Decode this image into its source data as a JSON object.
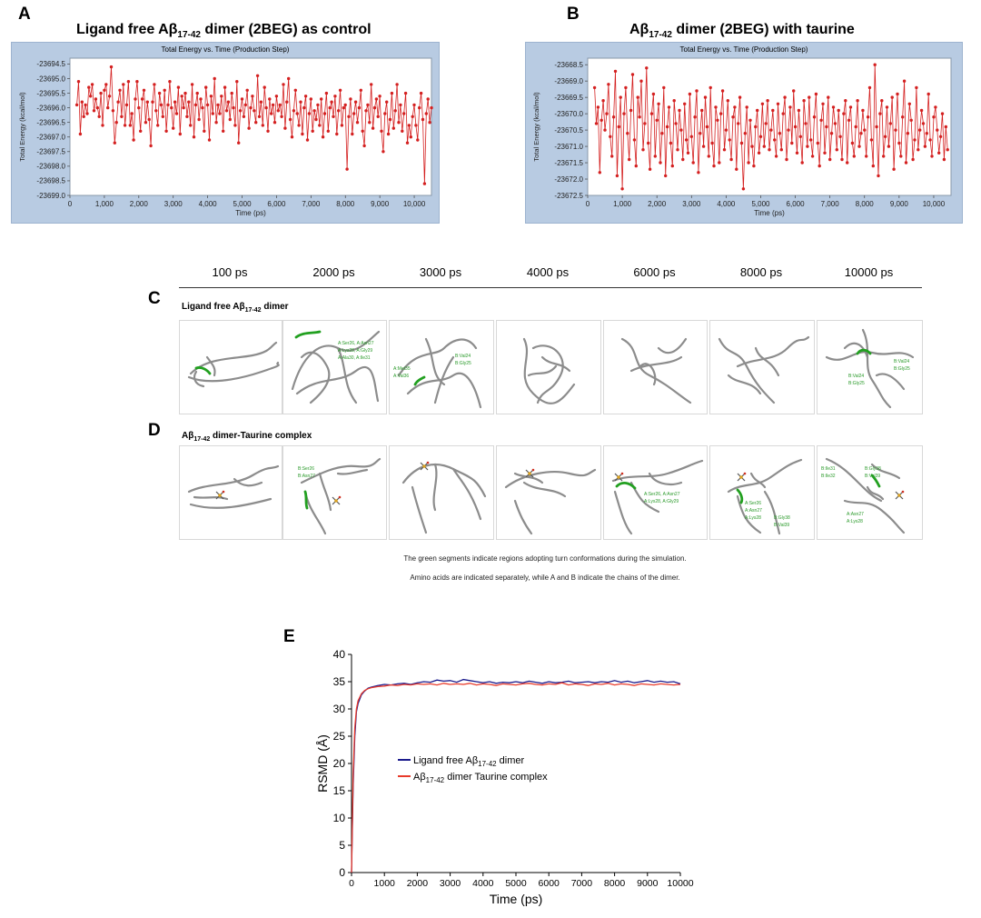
{
  "panels": {
    "a_letter": "A",
    "b_letter": "B",
    "c_letter": "C",
    "d_letter": "D",
    "e_letter": "E"
  },
  "titles": {
    "a_pre": "Ligand free Aβ",
    "a_sub": "17-42",
    "a_post": " dimer (2BEG) as control",
    "b_pre": "Aβ",
    "b_sub": "17-42",
    "b_post": " dimer (2BEG) with taurine"
  },
  "chart_data": [
    {
      "id": "A",
      "type": "line",
      "title": "Total Energy vs. Time (Production Step)",
      "xlabel": "Time (ps)",
      "ylabel": "Total Energy (kcal/mol)",
      "xlim": [
        0,
        10500
      ],
      "ylim": [
        -23699.0,
        -23694.3
      ],
      "xticks": [
        0,
        1000,
        2000,
        3000,
        4000,
        5000,
        6000,
        7000,
        8000,
        9000,
        10000
      ],
      "xtick_labels": [
        "0",
        "1,000",
        "2,000",
        "3,000",
        "4,000",
        "5,000",
        "6,000",
        "7,000",
        "8,000",
        "9,000",
        "10,000"
      ],
      "yticks": [
        -23694.5,
        -23695.0,
        -23695.5,
        -23696.0,
        -23696.5,
        -23697.0,
        -23697.5,
        -23698.0,
        -23698.5,
        -23699.0
      ],
      "ytick_labels": [
        "-23694.5",
        "-23695.0",
        "-23695.5",
        "-23696.0",
        "-23696.5",
        "-23697.0",
        "-23697.5",
        "-23698.0",
        "-23698.5",
        "-23699.0"
      ],
      "color": "#d42020",
      "x_start": 200,
      "x_step": 50,
      "values": [
        -23695.9,
        -23695.1,
        -23696.9,
        -23695.8,
        -23696.3,
        -23695.9,
        -23696.2,
        -23695.3,
        -23695.6,
        -23695.2,
        -23696.1,
        -23695.7,
        -23696.0,
        -23696.3,
        -23695.5,
        -23696.6,
        -23695.4,
        -23695.2,
        -23696.0,
        -23695.6,
        -23694.6,
        -23696.1,
        -23697.2,
        -23696.5,
        -23695.8,
        -23695.4,
        -23696.3,
        -23695.2,
        -23696.6,
        -23695.9,
        -23695.1,
        -23696.6,
        -23696.2,
        -23697.1,
        -23695.7,
        -23695.1,
        -23696.0,
        -23696.8,
        -23695.7,
        -23695.4,
        -23696.5,
        -23695.8,
        -23696.4,
        -23697.3,
        -23695.8,
        -23695.2,
        -23696.1,
        -23696.6,
        -23695.5,
        -23695.9,
        -23696.3,
        -23695.4,
        -23696.8,
        -23695.9,
        -23695.1,
        -23696.0,
        -23696.7,
        -23695.8,
        -23696.2,
        -23695.3,
        -23696.9,
        -23695.6,
        -23696.0,
        -23695.5,
        -23696.3,
        -23695.8,
        -23696.6,
        -23695.2,
        -23697.0,
        -23695.9,
        -23695.5,
        -23696.4,
        -23695.7,
        -23696.0,
        -23696.8,
        -23695.3,
        -23695.9,
        -23697.1,
        -23695.6,
        -23696.2,
        -23695.0,
        -23696.5,
        -23695.9,
        -23696.2,
        -23695.6,
        -23696.8,
        -23695.3,
        -23696.1,
        -23695.8,
        -23696.4,
        -23695.5,
        -23696.0,
        -23696.6,
        -23695.1,
        -23697.2,
        -23696.1,
        -23695.7,
        -23696.3,
        -23695.9,
        -23695.4,
        -23696.7,
        -23696.0,
        -23695.6,
        -23696.1,
        -23696.5,
        -23694.9,
        -23696.3,
        -23695.8,
        -23696.6,
        -23695.3,
        -23696.0,
        -23696.8,
        -23695.7,
        -23696.2,
        -23695.9,
        -23696.5,
        -23695.6,
        -23696.1,
        -23695.9,
        -23696.3,
        -23695.2,
        -23696.7,
        -23695.8,
        -23695.0,
        -23696.4,
        -23697.0,
        -23696.1,
        -23695.4,
        -23696.2,
        -23696.6,
        -23695.8,
        -23696.9,
        -23696.0,
        -23695.6,
        -23697.1,
        -23696.2,
        -23695.7,
        -23696.8,
        -23696.1,
        -23696.4,
        -23695.9,
        -23696.6,
        -23695.7,
        -23697.0,
        -23696.2,
        -23695.5,
        -23696.8,
        -23696.0,
        -23695.8,
        -23696.3,
        -23695.6,
        -23696.9,
        -23696.1,
        -23695.4,
        -23696.6,
        -23696.0,
        -23695.9,
        -23698.1,
        -23696.3,
        -23695.7,
        -23696.9,
        -23696.2,
        -23695.8,
        -23696.5,
        -23696.0,
        -23695.4,
        -23696.8,
        -23697.3,
        -23696.1,
        -23695.9,
        -23696.5,
        -23695.2,
        -23696.7,
        -23696.0,
        -23695.7,
        -23696.3,
        -23695.6,
        -23696.8,
        -23697.5,
        -23696.2,
        -23695.8,
        -23696.9,
        -23696.4,
        -23695.5,
        -23696.7,
        -23696.1,
        -23695.2,
        -23696.5,
        -23695.9,
        -23696.8,
        -23696.2,
        -23695.5,
        -23697.2,
        -23696.6,
        -23697.0,
        -23696.3,
        -23695.9,
        -23696.6,
        -23697.1,
        -23696.0,
        -23695.5,
        -23696.4,
        -23698.6,
        -23696.2,
        -23695.7,
        -23696.5,
        -23696.0
      ]
    },
    {
      "id": "B",
      "type": "line",
      "title": "Total Energy vs. Time (Production Step)",
      "xlabel": "Time (ps)",
      "ylabel": "Total Energy (kcal/mol)",
      "xlim": [
        0,
        10500
      ],
      "ylim": [
        -23672.5,
        -23668.3
      ],
      "xticks": [
        0,
        1000,
        2000,
        3000,
        4000,
        5000,
        6000,
        7000,
        8000,
        9000,
        10000
      ],
      "xtick_labels": [
        "0",
        "1,000",
        "2,000",
        "3,000",
        "4,000",
        "5,000",
        "6,000",
        "7,000",
        "8,000",
        "9,000",
        "10,000"
      ],
      "yticks": [
        -23668.5,
        -23669.0,
        -23669.5,
        -23670.0,
        -23670.5,
        -23671.0,
        -23671.5,
        -23672.0,
        -23672.5
      ],
      "ytick_labels": [
        "-23668.5",
        "-23669.0",
        "-23669.5",
        "-23670.0",
        "-23670.5",
        "-23671.0",
        "-23671.5",
        "-23672.0",
        "-23672.5"
      ],
      "color": "#d42020",
      "x_start": 200,
      "x_step": 50,
      "values": [
        -23669.2,
        -23670.3,
        -23669.8,
        -23671.8,
        -23670.2,
        -23669.6,
        -23670.5,
        -23670.0,
        -23669.1,
        -23670.7,
        -23671.3,
        -23670.1,
        -23668.7,
        -23671.9,
        -23670.4,
        -23669.5,
        -23672.3,
        -23670.0,
        -23669.2,
        -23670.6,
        -23671.4,
        -23669.9,
        -23668.8,
        -23670.8,
        -23671.6,
        -23669.5,
        -23670.1,
        -23669.0,
        -23671.1,
        -23670.3,
        -23668.6,
        -23670.9,
        -23671.7,
        -23670.0,
        -23669.4,
        -23671.3,
        -23670.2,
        -23669.7,
        -23671.5,
        -23670.6,
        -23669.2,
        -23671.9,
        -23670.4,
        -23669.8,
        -23670.9,
        -23671.6,
        -23669.6,
        -23670.3,
        -23671.1,
        -23669.9,
        -23670.5,
        -23671.4,
        -23669.7,
        -23670.8,
        -23671.2,
        -23669.4,
        -23670.7,
        -23671.5,
        -23670.1,
        -23669.3,
        -23671.8,
        -23670.6,
        -23669.9,
        -23671.0,
        -23669.5,
        -23670.4,
        -23671.3,
        -23669.2,
        -23670.9,
        -23671.6,
        -23669.8,
        -23670.2,
        -23671.5,
        -23670.0,
        -23669.3,
        -23671.1,
        -23670.5,
        -23669.6,
        -23670.8,
        -23671.4,
        -23670.1,
        -23669.8,
        -23671.7,
        -23670.3,
        -23669.5,
        -23670.9,
        -23672.3,
        -23670.6,
        -23669.8,
        -23671.5,
        -23670.2,
        -23671.0,
        -23671.6,
        -23670.4,
        -23669.9,
        -23671.2,
        -23670.7,
        -23669.7,
        -23671.0,
        -23670.3,
        -23669.6,
        -23671.1,
        -23670.5,
        -23669.9,
        -23670.8,
        -23671.3,
        -23669.7,
        -23670.6,
        -23671.1,
        -23670.0,
        -23669.5,
        -23671.4,
        -23670.5,
        -23669.8,
        -23670.9,
        -23669.3,
        -23670.4,
        -23671.2,
        -23669.9,
        -23670.7,
        -23671.5,
        -23669.6,
        -23670.3,
        -23671.0,
        -23669.5,
        -23670.8,
        -23671.3,
        -23670.1,
        -23669.4,
        -23670.9,
        -23671.6,
        -23670.2,
        -23669.7,
        -23671.2,
        -23670.4,
        -23669.5,
        -23671.4,
        -23670.6,
        -23669.8,
        -23670.3,
        -23671.1,
        -23669.9,
        -23670.7,
        -23671.4,
        -23670.0,
        -23669.6,
        -23671.5,
        -23670.2,
        -23669.8,
        -23670.9,
        -23671.3,
        -23670.4,
        -23669.6,
        -23671.0,
        -23670.6,
        -23669.9,
        -23670.5,
        -23671.3,
        -23670.1,
        -23669.2,
        -23670.8,
        -23671.6,
        -23668.5,
        -23670.4,
        -23671.9,
        -23670.0,
        -23669.6,
        -23671.3,
        -23670.7,
        -23669.8,
        -23671.0,
        -23670.3,
        -23669.5,
        -23671.7,
        -23670.5,
        -23669.4,
        -23670.9,
        -23671.3,
        -23670.1,
        -23669.0,
        -23671.5,
        -23670.6,
        -23669.7,
        -23670.2,
        -23671.4,
        -23670.8,
        -23669.2,
        -23671.1,
        -23670.5,
        -23669.9,
        -23670.3,
        -23671.0,
        -23670.6,
        -23669.4,
        -23670.8,
        -23671.3,
        -23670.1,
        -23669.8,
        -23670.5,
        -23671.2,
        -23670.7,
        -23670.0,
        -23671.4,
        -23670.4,
        -23671.1
      ]
    },
    {
      "id": "E",
      "type": "line",
      "title": "",
      "xlabel": "Time (ps)",
      "ylabel": "RSMD (Å)",
      "xlim": [
        0,
        10000
      ],
      "ylim": [
        0,
        40
      ],
      "xticks": [
        0,
        1000,
        2000,
        3000,
        4000,
        5000,
        6000,
        7000,
        8000,
        9000,
        10000
      ],
      "xtick_labels": [
        "0",
        "1000",
        "2000",
        "3000",
        "4000",
        "5000",
        "6000",
        "7000",
        "8000",
        "9000",
        "10000"
      ],
      "yticks": [
        0,
        5,
        10,
        15,
        20,
        25,
        30,
        35,
        40
      ],
      "ytick_labels": [
        "0",
        "5",
        "10",
        "15",
        "20",
        "25",
        "30",
        "35",
        "40"
      ],
      "series": [
        {
          "name": "Ligand free Aβ17-42 dimer",
          "name_pre": "Ligand free Aβ",
          "name_sub": "17-42",
          "name_post": " dimer",
          "color": "#1a1a8c",
          "x": [
            0,
            50,
            100,
            150,
            200,
            300,
            400,
            500,
            600,
            800,
            1000,
            1200,
            1400,
            1600,
            1800,
            2000,
            2200,
            2400,
            2600,
            2800,
            3000,
            3200,
            3400,
            3600,
            3800,
            4000,
            4200,
            4400,
            4600,
            4800,
            5000,
            5200,
            5400,
            5600,
            5800,
            6000,
            6200,
            6400,
            6600,
            6800,
            7000,
            7200,
            7400,
            7600,
            7800,
            8000,
            8200,
            8400,
            8600,
            8800,
            9000,
            9200,
            9400,
            9600,
            9800,
            10000
          ],
          "values": [
            0,
            16,
            25,
            29.5,
            31,
            32.6,
            33.3,
            33.8,
            34.0,
            34.3,
            34.5,
            34.4,
            34.6,
            34.7,
            34.5,
            34.8,
            35.0,
            34.9,
            35.3,
            35.1,
            35.2,
            34.9,
            35.4,
            35.2,
            35.0,
            34.8,
            35.0,
            34.7,
            34.9,
            34.8,
            35.0,
            34.8,
            35.1,
            34.9,
            34.7,
            35.0,
            34.8,
            34.9,
            35.1,
            34.8,
            34.9,
            35.0,
            34.8,
            35.0,
            34.9,
            35.2,
            34.9,
            35.1,
            34.8,
            35.0,
            35.2,
            34.9,
            35.1,
            34.9,
            35.0,
            34.6
          ]
        },
        {
          "name": "Aβ17-42 dimer Taurine complex",
          "name_pre": "Aβ",
          "name_sub": "17-42",
          "name_post": " dimer Taurine complex",
          "color": "#e83a2a",
          "x": [
            0,
            50,
            100,
            150,
            200,
            300,
            400,
            500,
            600,
            800,
            1000,
            1200,
            1400,
            1600,
            1800,
            2000,
            2200,
            2400,
            2600,
            2800,
            3000,
            3200,
            3400,
            3600,
            3800,
            4000,
            4200,
            4400,
            4600,
            4800,
            5000,
            5200,
            5400,
            5600,
            5800,
            6000,
            6200,
            6400,
            6600,
            6800,
            7000,
            7200,
            7400,
            7600,
            7800,
            8000,
            8200,
            8400,
            8600,
            8800,
            9000,
            9200,
            9400,
            9600,
            9800,
            10000
          ],
          "values": [
            0,
            18,
            26.5,
            30,
            31.5,
            32.8,
            33.4,
            33.7,
            33.9,
            34.1,
            34.2,
            34.4,
            34.3,
            34.5,
            34.4,
            34.6,
            34.5,
            34.6,
            34.4,
            34.7,
            34.5,
            34.6,
            34.5,
            34.7,
            34.4,
            34.6,
            34.5,
            34.3,
            34.6,
            34.5,
            34.4,
            34.6,
            34.7,
            34.5,
            34.4,
            34.6,
            34.5,
            34.8,
            34.4,
            34.6,
            34.5,
            34.3,
            34.6,
            34.5,
            34.7,
            34.4,
            34.6,
            34.5,
            34.3,
            34.6,
            34.5,
            34.4,
            34.6,
            34.5,
            34.4,
            34.5
          ]
        }
      ]
    }
  ],
  "snapshots": {
    "times": [
      "100 ps",
      "2000 ps",
      "3000 ps",
      "4000 ps",
      "6000 ps",
      "8000 ps",
      "10000 ps"
    ],
    "c_label_pre": "Ligand free Aβ",
    "c_label_sub": "17-42",
    "c_label_post": " dimer",
    "d_label_pre": "Aβ",
    "d_label_sub": "17-42",
    "d_label_post": " dimer-Taurine complex",
    "c_annotations": {
      "s2a": "A:Ser26, A:Asn27",
      "s2b": "A:Lys28, A:Gly29",
      "s2c": "A:Ala30, A:Ile31",
      "s3a": "A:Met35",
      "s3b": "A:Val36",
      "s3c": "B:Val24",
      "s3d": "B:Gly25",
      "s7a": "B:Val24",
      "s7b": "B:Gly25",
      "s7c": "B:Val24",
      "s7d": "B:Gly25"
    },
    "d_annotations": {
      "s2a": "B:Ser26",
      "s2b": "B:Asn27",
      "s5a": "A:Ser26, A:Asn27",
      "s5b": "A:Lys28, A:Gly29",
      "s6a": "A:Ser26",
      "s6b": "A:Asn27",
      "s6c": "A:Lys28",
      "s6d": "B:Gly38",
      "s6e": "B:Val39",
      "s7a": "B:Ile31",
      "s7b": "B:Ile32",
      "s7c": "B:Gly38",
      "s7d": "B:Val39",
      "s7e": "A:Asn27",
      "s7f": "A:Lys28"
    },
    "caption_1": "The green segments indicate regions adopting turn conformations during the simulation.",
    "caption_2": "Amino acids are indicated separately, while A and B indicate the chains of the dimer."
  }
}
